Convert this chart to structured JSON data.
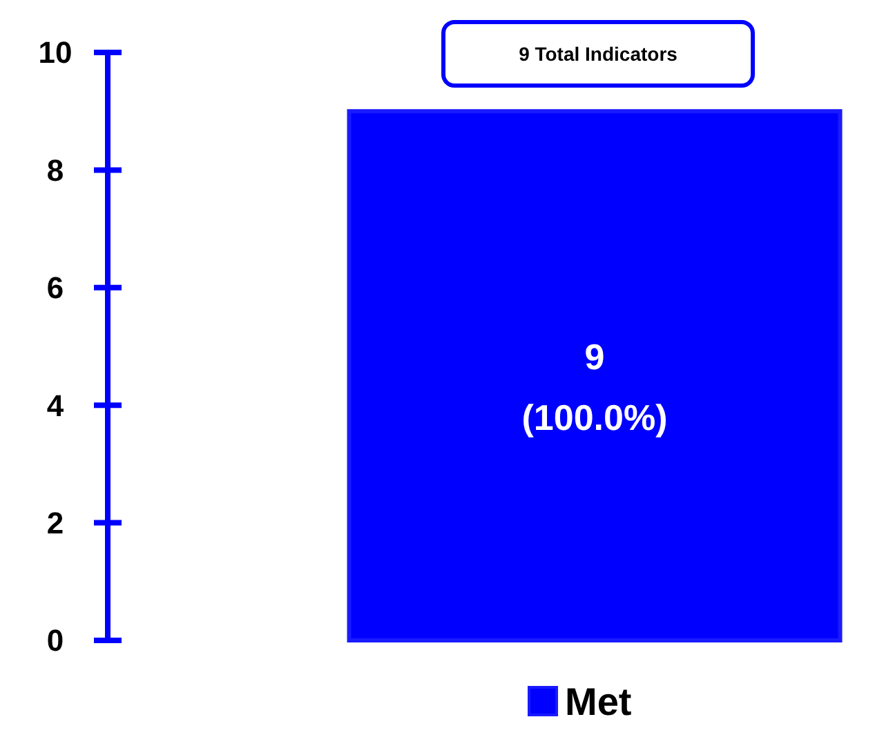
{
  "chart_data": {
    "type": "bar",
    "title": "9 Total Indicators",
    "categories": [
      null
    ],
    "series": [
      {
        "name": "Met",
        "color": "#0000ff",
        "values": [
          9
        ],
        "value_labels": [
          "9\n(100.0%)"
        ]
      }
    ],
    "ylim": [
      0,
      10
    ],
    "yticks": [
      0,
      2,
      4,
      6,
      8,
      10
    ],
    "grid": false,
    "legend": "bottom"
  }
}
